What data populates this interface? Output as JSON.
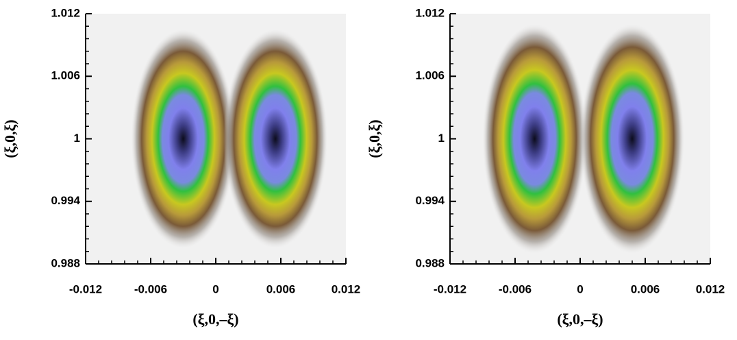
{
  "chart_data": [
    {
      "type": "heatmap",
      "xlabel": "(ξ,0,–ξ)",
      "ylabel": "(ξ,0,ξ)",
      "xlim": [
        -0.012,
        0.012
      ],
      "xticks": [
        -0.012,
        -0.006,
        0,
        0.006,
        0.012
      ],
      "ylim": [
        0.988,
        1.012
      ],
      "yticks": [
        0.988,
        0.994,
        1,
        1.006,
        1.012
      ],
      "peaks": [
        {
          "x": -0.003,
          "y": 1.0,
          "sx": 0.0048,
          "sy": 0.0105
        },
        {
          "x": 0.0055,
          "y": 1.0,
          "sx": 0.0048,
          "sy": 0.0105
        }
      ]
    },
    {
      "type": "heatmap",
      "xlabel": "(ξ,0,–ξ)",
      "ylabel": "(ξ,0,ξ)",
      "xlim": [
        -0.012,
        0.012
      ],
      "xticks": [
        -0.012,
        -0.006,
        0,
        0.006,
        0.012
      ],
      "ylim": [
        0.988,
        1.012
      ],
      "yticks": [
        0.988,
        0.994,
        1,
        1.006,
        1.012
      ],
      "peaks": [
        {
          "x": -0.0042,
          "y": 1.0,
          "sx": 0.0048,
          "sy": 0.011
        },
        {
          "x": 0.0048,
          "y": 1.0,
          "sx": 0.0048,
          "sy": 0.011
        }
      ]
    }
  ]
}
